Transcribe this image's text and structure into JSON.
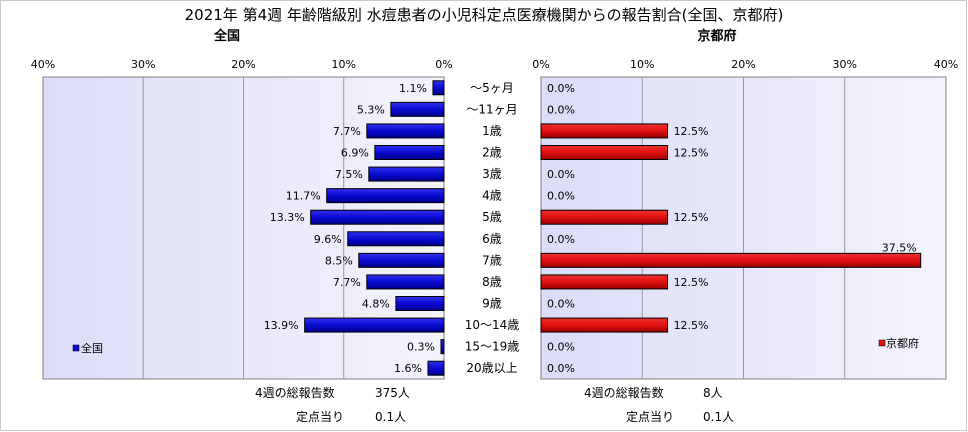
{
  "chart_data": {
    "type": "bar",
    "title": "2021年 第4週 年齢階級別 水痘患者の小児科定点医療機関からの報告割合(全国、京都府)",
    "categories": [
      "～5ヶ月",
      "～11ヶ月",
      "1歳",
      "2歳",
      "3歳",
      "4歳",
      "5歳",
      "6歳",
      "7歳",
      "8歳",
      "9歳",
      "10～14歳",
      "15～19歳",
      "20歳以上"
    ],
    "panels": [
      {
        "name": "全国",
        "direction": "left",
        "axis_ticks": [
          "40%",
          "30%",
          "20%",
          "10%",
          "0%"
        ],
        "xlim": [
          0,
          40
        ],
        "color": "#0a0ad2",
        "values": [
          1.1,
          5.3,
          7.7,
          6.9,
          7.5,
          11.7,
          13.3,
          9.6,
          8.5,
          7.7,
          4.8,
          13.9,
          0.3,
          1.6
        ],
        "labels": [
          "1.1%",
          "5.3%",
          "7.7%",
          "6.9%",
          "7.5%",
          "11.7%",
          "13.3%",
          "9.6%",
          "8.5%",
          "7.7%",
          "4.8%",
          "13.9%",
          "0.3%",
          "1.6%"
        ],
        "legend": "全国",
        "stats": [
          {
            "label": "4週の総報告数",
            "value": "375人"
          },
          {
            "label": "定点当り",
            "value": "0.1人"
          }
        ]
      },
      {
        "name": "京都府",
        "direction": "right",
        "axis_ticks": [
          "0%",
          "10%",
          "20%",
          "30%",
          "40%"
        ],
        "xlim": [
          0,
          40
        ],
        "color": "#e01010",
        "values": [
          0,
          0,
          12.5,
          12.5,
          0,
          0,
          12.5,
          0,
          37.5,
          12.5,
          0,
          12.5,
          0,
          0
        ],
        "labels": [
          "0.0%",
          "0.0%",
          "12.5%",
          "12.5%",
          "0.0%",
          "0.0%",
          "12.5%",
          "0.0%",
          "37.5%",
          "12.5%",
          "0.0%",
          "12.5%",
          "0.0%",
          "0.0%"
        ],
        "legend": "京都府",
        "stats": [
          {
            "label": "4週の総報告数",
            "value": "8人"
          },
          {
            "label": "定点当り",
            "value": "0.1人"
          }
        ]
      }
    ],
    "grid": true,
    "legend_placement": "bottom-outer-corner"
  }
}
